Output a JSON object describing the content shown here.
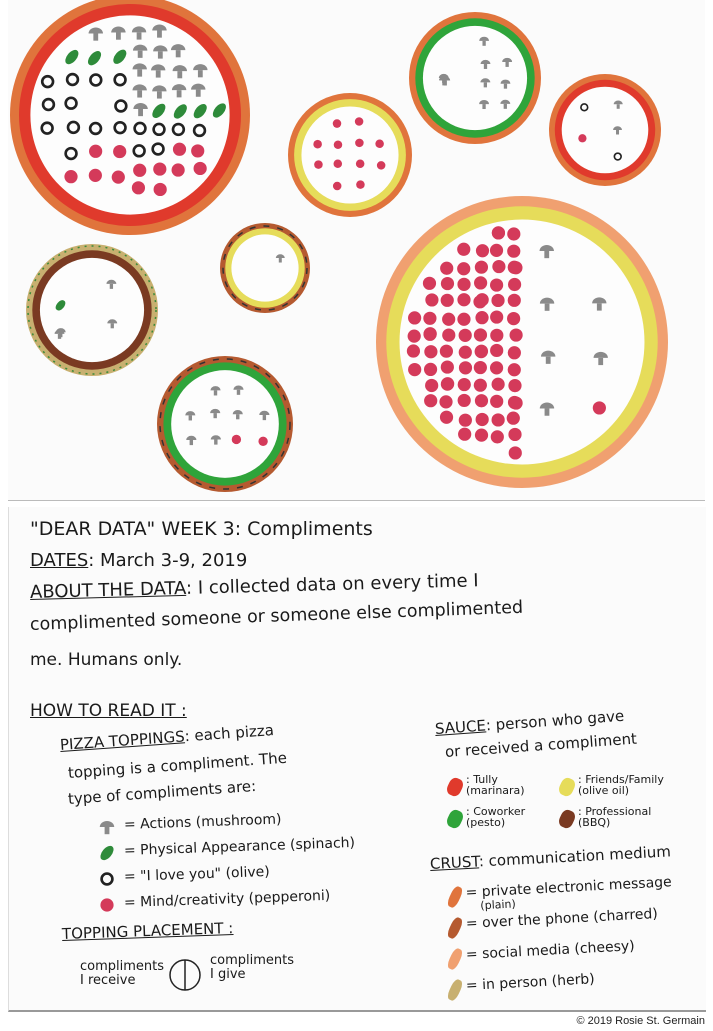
{
  "colors": {
    "marinara": "#e03a2c",
    "pesto": "#2fa43a",
    "olive_oil": "#e6dc5a",
    "bbq": "#7a3a22",
    "crust_plain": "#e0743c",
    "crust_charred": "#b55a30",
    "crust_cheesy": "#f0a070",
    "crust_herb": "#c8b070",
    "mushroom": "#8a8a8a",
    "spinach": "#2e8b3a",
    "olive": "#222222",
    "pepperoni": "#d43a5a"
  },
  "pizzas": [
    {
      "sauce": "marinara",
      "crust": "plain",
      "received": {
        "mushroom": 2,
        "spinach": 3,
        "olive": 12,
        "pepperoni": 5
      },
      "given": {
        "mushroom": 14,
        "spinach": 4,
        "olive": 6,
        "pepperoni": 8
      }
    },
    {
      "sauce": "pesto",
      "crust": "plain",
      "received": {
        "mushroom": 3
      },
      "given": {
        "mushroom": 7
      }
    },
    {
      "sauce": "marinara",
      "crust": "plain",
      "received": {
        "olive": 1,
        "pepperoni": 1
      },
      "given": {
        "mushroom": 2,
        "olive": 1
      }
    },
    {
      "sauce": "olive_oil",
      "crust": "plain",
      "received": {
        "pepperoni": 6
      },
      "given": {
        "pepperoni": 6
      }
    },
    {
      "sauce": "olive_oil",
      "crust": "charred",
      "received": {},
      "given": {
        "mushroom": 1
      }
    },
    {
      "sauce": "bbq",
      "crust": "herb",
      "received": {
        "spinach": 2,
        "mushroom": 2
      },
      "given": {
        "mushroom": 2
      }
    },
    {
      "sauce": "pesto",
      "crust": "charred",
      "received": {
        "mushroom": 5
      },
      "given": {
        "mushroom": 3,
        "pepperoni": 2
      }
    },
    {
      "sauce": "olive_oil",
      "crust": "cheesy",
      "received": {
        "pepperoni": 80
      },
      "given": {
        "mushroom": 6,
        "pepperoni": 1
      }
    }
  ],
  "legend": {
    "title": "\"DEAR DATA\" WEEK 3: Compliments",
    "dates_label": "DATES",
    "dates_value": ": March 3-9, 2019",
    "about_label": "ABOUT THE DATA",
    "about_line1": ": I collected data on every time I",
    "about_line2": "complimented someone or someone else complimented",
    "about_line3": "me. Humans only.",
    "how_to_read": "HOW TO READ IT :",
    "toppings_label": "PIZZA TOPPINGS",
    "toppings_line1": ": each pizza",
    "toppings_line2": "topping is a compliment. The",
    "toppings_line3": "type of compliments are:",
    "toppings": [
      {
        "icon": "mushroom",
        "label": "= Actions (mushroom)"
      },
      {
        "icon": "spinach",
        "label": "= Physical Appearance (spinach)"
      },
      {
        "icon": "olive",
        "label": "= \"I love you\" (olive)"
      },
      {
        "icon": "pepperoni",
        "label": "= Mind/creativity (pepperoni)"
      }
    ],
    "placement_label": "TOPPING PLACEMENT :",
    "placement_left": "compliments I receive",
    "placement_right": "compliments I give",
    "sauce_label": "SAUCE",
    "sauce_line1": ": person who gave",
    "sauce_line2": "or received a compliment",
    "sauces": [
      {
        "key": "marinara",
        "label": ": Tully",
        "sub": "(marinara)"
      },
      {
        "key": "olive_oil",
        "label": ": Friends/Family",
        "sub": "(olive oil)"
      },
      {
        "key": "pesto",
        "label": ": Coworker",
        "sub": "(pesto)"
      },
      {
        "key": "bbq",
        "label": ": Professional",
        "sub": "(BBQ)"
      }
    ],
    "crust_label": "CRUST",
    "crust_line1": ": communication medium",
    "crusts": [
      {
        "key": "crust_plain",
        "label": "= private electronic message",
        "sub": "(plain)"
      },
      {
        "key": "crust_charred",
        "label": "= over the phone (charred)"
      },
      {
        "key": "crust_cheesy",
        "label": "= social media (cheesy)"
      },
      {
        "key": "crust_herb",
        "label": "= in person (herb)"
      }
    ]
  },
  "copyright": "© 2019 Rosie St. Germain"
}
